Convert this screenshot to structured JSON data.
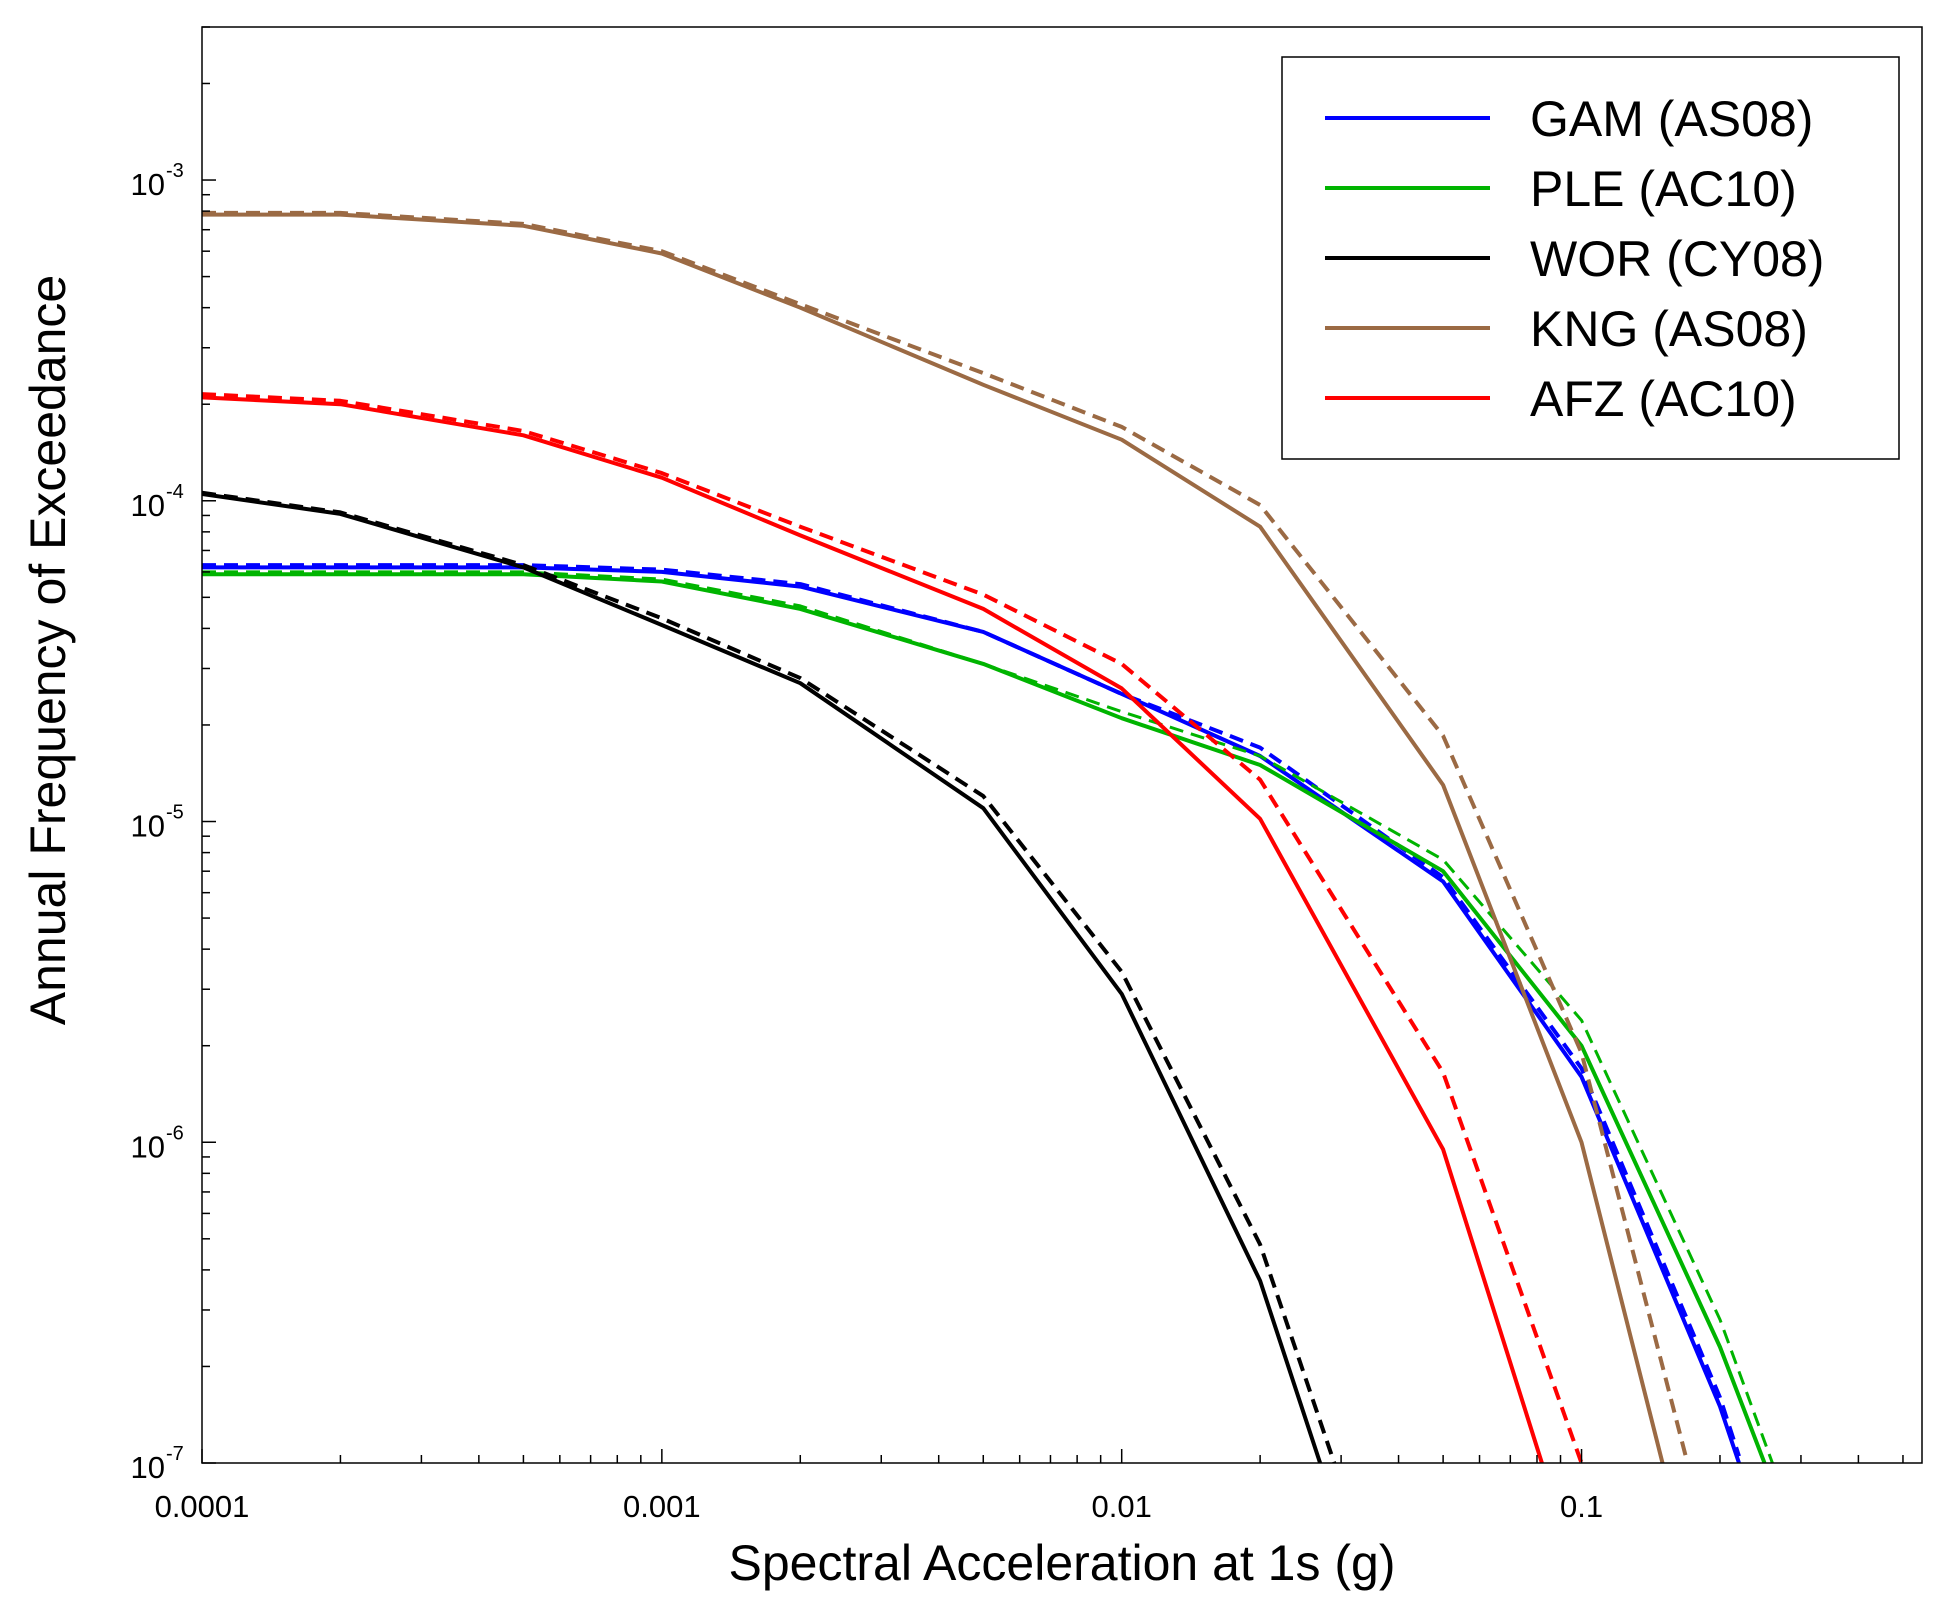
{
  "chart_data": {
    "type": "line",
    "title": "",
    "xlabel": "Spectral Acceleration at 1s (g)",
    "ylabel": "Annual Frequency of Exceedance",
    "x_scale": "log",
    "y_scale": "log",
    "xlim": [
      0.0001,
      0.55
    ],
    "ylim": [
      1e-07,
      0.003
    ],
    "x_ticks": [
      {
        "value": 0.0001,
        "label": "0.0001"
      },
      {
        "value": 0.001,
        "label": "0.001"
      },
      {
        "value": 0.01,
        "label": "0.01"
      },
      {
        "value": 0.1,
        "label": "0.1"
      }
    ],
    "y_ticks": [
      {
        "value": 1e-07,
        "base": "10",
        "exp": "-7"
      },
      {
        "value": 1e-06,
        "base": "10",
        "exp": "-6"
      },
      {
        "value": 1e-05,
        "base": "10",
        "exp": "-5"
      },
      {
        "value": 0.0001,
        "base": "10",
        "exp": "-4"
      },
      {
        "value": 0.001,
        "base": "10",
        "exp": "-3"
      }
    ],
    "grid": false,
    "legend_position": "top-right",
    "legend": [
      {
        "label": "GAM (AS08)",
        "color": "#0000ff"
      },
      {
        "label": "PLE (AC10)",
        "color": "#00b400"
      },
      {
        "label": "WOR (CY08)",
        "color": "#000000"
      },
      {
        "label": "KNG (AS08)",
        "color": "#9b6a44"
      },
      {
        "label": "AFZ (AC10)",
        "color": "#ff0000"
      }
    ],
    "series": [
      {
        "name": "GAM (AS08)",
        "color": "#0000ff",
        "style": "solid",
        "width": 4,
        "x": [
          0.0001,
          0.0002,
          0.0005,
          0.001,
          0.002,
          0.005,
          0.01,
          0.02,
          0.05,
          0.1,
          0.2,
          0.22
        ],
        "y": [
          6.2e-05,
          6.2e-05,
          6.2e-05,
          6e-05,
          5.4e-05,
          3.9e-05,
          2.5e-05,
          1.6e-05,
          6.5e-06,
          1.6e-06,
          1.5e-07,
          1e-07
        ]
      },
      {
        "name": "GAM (AS08) dashed",
        "color": "#0000ff",
        "style": "dashed",
        "width": 4,
        "x": [
          0.0001,
          0.0002,
          0.0005,
          0.001,
          0.002,
          0.005,
          0.01,
          0.02,
          0.05,
          0.1,
          0.2,
          0.22
        ],
        "y": [
          6.3e-05,
          6.3e-05,
          6.3e-05,
          6.1e-05,
          5.5e-05,
          3.9e-05,
          2.5e-05,
          1.7e-05,
          6.7e-06,
          1.7e-06,
          1.6e-07,
          1.05e-07
        ]
      },
      {
        "name": "PLE (AC10)",
        "color": "#00b400",
        "style": "solid",
        "width": 4,
        "x": [
          0.0001,
          0.0002,
          0.0005,
          0.001,
          0.002,
          0.005,
          0.01,
          0.02,
          0.05,
          0.1,
          0.2,
          0.25
        ],
        "y": [
          5.9e-05,
          5.9e-05,
          5.9e-05,
          5.6e-05,
          4.6e-05,
          3.1e-05,
          2.1e-05,
          1.5e-05,
          7e-06,
          2e-06,
          2.3e-07,
          1e-07
        ]
      },
      {
        "name": "PLE (AC10) dashed",
        "color": "#00b400",
        "style": "dashed",
        "width": 3,
        "x": [
          0.0001,
          0.0002,
          0.0005,
          0.001,
          0.002,
          0.005,
          0.01,
          0.02,
          0.05,
          0.1,
          0.2,
          0.26
        ],
        "y": [
          6e-05,
          6e-05,
          6e-05,
          5.7e-05,
          4.7e-05,
          3.1e-05,
          2.2e-05,
          1.6e-05,
          7.6e-06,
          2.4e-06,
          2.8e-07,
          1e-07
        ]
      },
      {
        "name": "WOR (CY08)",
        "color": "#000000",
        "style": "solid",
        "width": 4,
        "x": [
          0.0001,
          0.0002,
          0.0005,
          0.001,
          0.002,
          0.005,
          0.01,
          0.02,
          0.027
        ],
        "y": [
          0.000105,
          9.1e-05,
          6.2e-05,
          4.1e-05,
          2.7e-05,
          1.1e-05,
          2.9e-06,
          3.7e-07,
          1e-07
        ]
      },
      {
        "name": "WOR (CY08) dashed",
        "color": "#000000",
        "style": "dashed",
        "width": 4,
        "x": [
          0.0001,
          0.0002,
          0.0005,
          0.001,
          0.002,
          0.005,
          0.01,
          0.02,
          0.029
        ],
        "y": [
          0.000106,
          9.2e-05,
          6.3e-05,
          4.3e-05,
          2.8e-05,
          1.2e-05,
          3.4e-06,
          4.8e-07,
          1e-07
        ]
      },
      {
        "name": "KNG (AS08)",
        "color": "#9b6a44",
        "style": "solid",
        "width": 4,
        "x": [
          0.0001,
          0.0002,
          0.0005,
          0.001,
          0.002,
          0.005,
          0.01,
          0.02,
          0.05,
          0.1,
          0.15
        ],
        "y": [
          0.00078,
          0.00078,
          0.00072,
          0.00059,
          0.0004,
          0.00023,
          0.000155,
          8.3e-05,
          1.3e-05,
          1e-06,
          1e-07
        ]
      },
      {
        "name": "KNG (AS08) dashed",
        "color": "#9b6a44",
        "style": "dashed",
        "width": 4,
        "x": [
          0.0001,
          0.0002,
          0.0005,
          0.001,
          0.002,
          0.005,
          0.01,
          0.02,
          0.05,
          0.1,
          0.17
        ],
        "y": [
          0.00079,
          0.00079,
          0.00073,
          0.0006,
          0.00041,
          0.00025,
          0.00017,
          9.7e-05,
          1.85e-05,
          1.9e-06,
          1e-07
        ]
      },
      {
        "name": "AFZ (AC10)",
        "color": "#ff0000",
        "style": "solid",
        "width": 4,
        "x": [
          0.0001,
          0.0002,
          0.0005,
          0.001,
          0.002,
          0.005,
          0.01,
          0.02,
          0.05,
          0.082
        ],
        "y": [
          0.00021,
          0.0002,
          0.00016,
          0.000118,
          7.8e-05,
          4.6e-05,
          2.6e-05,
          1.02e-05,
          9.5e-07,
          1e-07
        ]
      },
      {
        "name": "AFZ (AC10) dashed",
        "color": "#ff0000",
        "style": "dashed",
        "width": 4,
        "x": [
          0.0001,
          0.0002,
          0.0005,
          0.001,
          0.002,
          0.005,
          0.01,
          0.02,
          0.05,
          0.1
        ],
        "y": [
          0.000215,
          0.000205,
          0.000165,
          0.000122,
          8.3e-05,
          5.1e-05,
          3.1e-05,
          1.35e-05,
          1.65e-06,
          1e-07
        ]
      }
    ]
  }
}
